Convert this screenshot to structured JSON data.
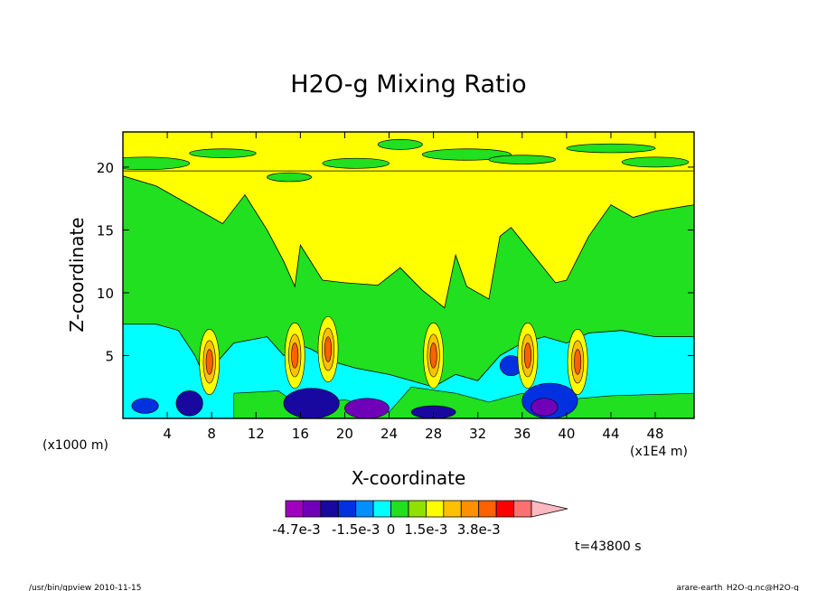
{
  "chart_data": {
    "type": "heatmap",
    "title": "H2O-g Mixing Ratio",
    "xlabel": "X-coordinate",
    "ylabel": "Z-coordinate",
    "x_unit_left": "(x1000 m)",
    "x_unit_right": "(x1E4 m)",
    "x_ticks": [
      4,
      8,
      12,
      16,
      20,
      24,
      28,
      32,
      36,
      40,
      44,
      48
    ],
    "y_ticks": [
      5,
      10,
      15,
      20
    ],
    "xlim": [
      0,
      51.5
    ],
    "ylim": [
      0,
      22.8
    ],
    "colorbar": {
      "colors": [
        "#a000c0",
        "#7000b8",
        "#1808a0",
        "#0030e0",
        "#0090ff",
        "#00ffff",
        "#20e020",
        "#90e000",
        "#ffff00",
        "#ffc000",
        "#ff9000",
        "#ff6000",
        "#ff0000",
        "#ff7070",
        "#ffb8c0"
      ],
      "tick_labels": [
        "-4.7e-3",
        "-1.5e-3",
        "0",
        "1.5e-3",
        "3.8e-3"
      ],
      "tick_positions": [
        0,
        4,
        6,
        8,
        11
      ]
    },
    "background_level_colors": [
      "#ffff00",
      "#20e020",
      "#00ffff"
    ],
    "features": [
      {
        "x": 7.8,
        "z": 4.5,
        "kind": "plume"
      },
      {
        "x": 15.5,
        "z": 5.0,
        "kind": "plume"
      },
      {
        "x": 18.5,
        "z": 5.5,
        "kind": "plume"
      },
      {
        "x": 28.0,
        "z": 5.0,
        "kind": "plume"
      },
      {
        "x": 36.5,
        "z": 5.0,
        "kind": "plume"
      },
      {
        "x": 41.0,
        "z": 4.5,
        "kind": "plume"
      }
    ],
    "time_label": "t=43800 s"
  },
  "footer": {
    "left": "/usr/bin/gpview  2010-11-15",
    "right": "arare-earth_H2O-g.nc@H2O-g"
  }
}
